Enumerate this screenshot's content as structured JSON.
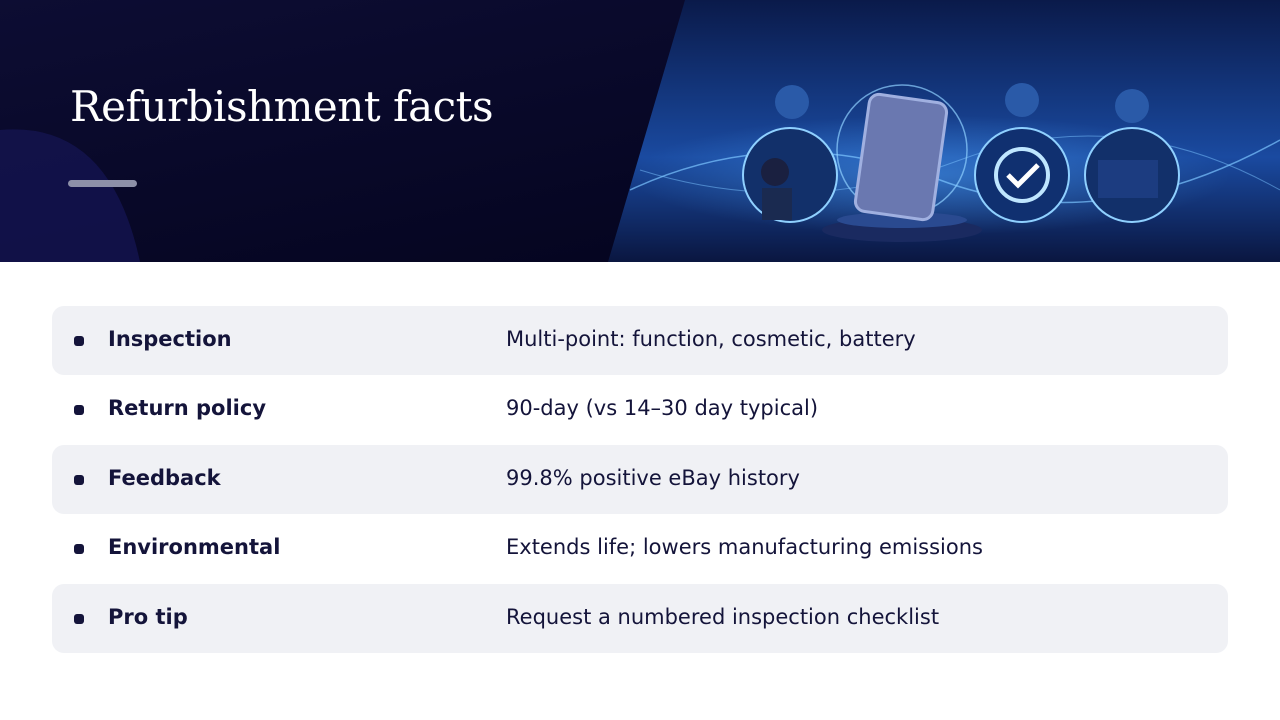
{
  "header": {
    "title": "Refurbishment facts"
  },
  "table": {
    "rows": [
      [
        "Inspection",
        "Multi-point: function, cosmetic, battery"
      ],
      [
        "Return policy",
        "90-day (vs 14–30 day typical)"
      ],
      [
        "Feedback",
        "99.8% positive eBay history"
      ],
      [
        "Environmental",
        "Extends life; lowers manufacturing emissions"
      ],
      [
        "Pro tip",
        "Request a numbered inspection checklist"
      ]
    ]
  }
}
